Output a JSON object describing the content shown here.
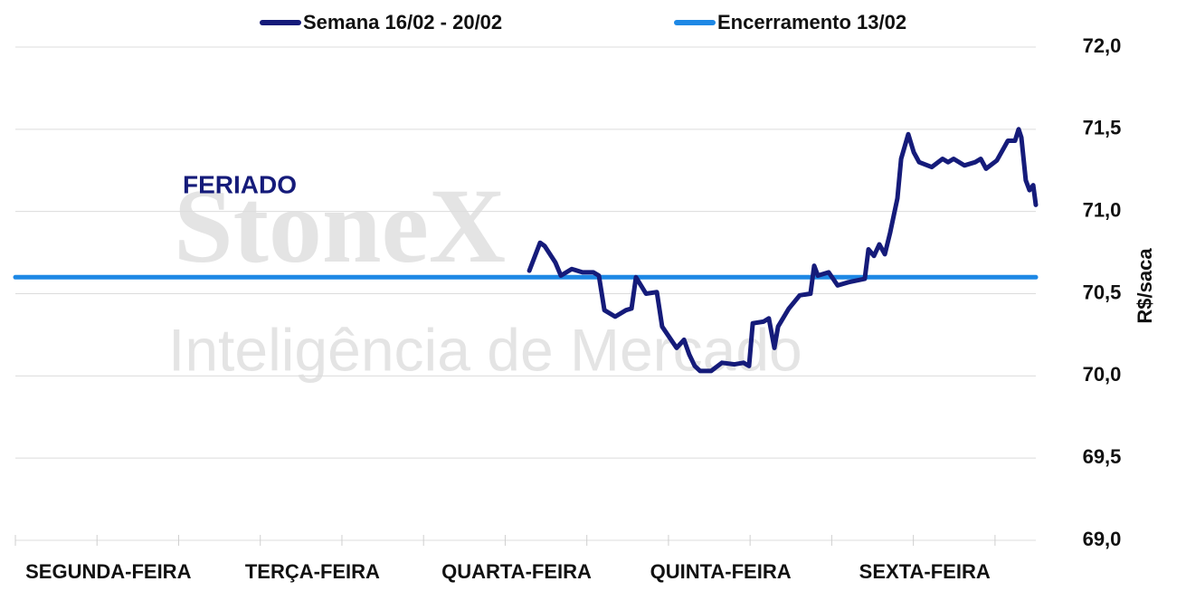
{
  "chart_data": {
    "type": "line",
    "legend_position": "top",
    "y_axis_label": "R$/saca",
    "annotation": "FERIADO",
    "watermark": [
      "StoneX",
      "Inteligência de Mercado"
    ],
    "categories": [
      "SEGUNDA-FEIRA",
      "TERÇA-FEIRA",
      "QUARTA-FEIRA",
      "QUINTA-FEIRA",
      "SEXTA-FEIRA"
    ],
    "xlim": [
      0,
      5
    ],
    "xticks": [
      0,
      0.4,
      0.8,
      1.2,
      1.6,
      2,
      2.4,
      2.8,
      3.2,
      3.6,
      4,
      4.4,
      4.8
    ],
    "ylim": [
      69,
      72
    ],
    "yticks": [
      {
        "value": 69,
        "label": "69,0"
      },
      {
        "value": 69.5,
        "label": "69,5"
      },
      {
        "value": 70,
        "label": "70,0"
      },
      {
        "value": 70.5,
        "label": "70,5"
      },
      {
        "value": 71,
        "label": "71,0"
      },
      {
        "value": 71.5,
        "label": "71,5"
      },
      {
        "value": 72,
        "label": "72,0"
      }
    ],
    "grid": true,
    "series": [
      {
        "name": "Semana 16/02 - 20/02",
        "color": "#151b7a",
        "x": [
          2.518,
          2.571,
          2.593,
          2.646,
          2.673,
          2.726,
          2.779,
          2.832,
          2.859,
          2.886,
          2.939,
          2.992,
          3.019,
          3.041,
          3.09,
          3.143,
          3.169,
          3.24,
          3.276,
          3.302,
          3.329,
          3.355,
          3.409,
          3.462,
          3.524,
          3.568,
          3.595,
          3.613,
          3.666,
          3.692,
          3.719,
          3.737,
          3.79,
          3.843,
          3.896,
          3.914,
          3.932,
          3.985,
          4.029,
          4.082,
          4.162,
          4.18,
          4.207,
          4.233,
          4.26,
          4.286,
          4.322,
          4.34,
          4.375,
          4.402,
          4.428,
          4.49,
          4.543,
          4.57,
          4.597,
          4.65,
          4.703,
          4.73,
          4.756,
          4.809,
          4.863,
          4.898,
          4.916,
          4.929,
          4.951,
          4.969,
          4.987,
          5.0
        ],
        "values": [
          70.64,
          70.81,
          70.79,
          70.69,
          70.61,
          70.65,
          70.63,
          70.63,
          70.61,
          70.4,
          70.36,
          70.4,
          70.41,
          70.6,
          70.5,
          70.51,
          70.3,
          70.17,
          70.22,
          70.13,
          70.06,
          70.03,
          70.03,
          70.08,
          70.07,
          70.08,
          70.06,
          70.32,
          70.33,
          70.35,
          70.17,
          70.3,
          70.41,
          70.49,
          70.5,
          70.67,
          70.61,
          70.63,
          70.55,
          70.57,
          70.59,
          70.77,
          70.73,
          70.8,
          70.74,
          70.87,
          71.08,
          71.32,
          71.47,
          71.36,
          71.3,
          71.27,
          71.32,
          71.3,
          71.32,
          71.28,
          71.3,
          71.32,
          71.26,
          71.31,
          71.43,
          71.43,
          71.5,
          71.45,
          71.19,
          71.13,
          71.16,
          71.04
        ]
      },
      {
        "name": "Encerramento 13/02",
        "color": "#1e88e5",
        "x": [
          0,
          5
        ],
        "values": [
          70.6,
          70.6
        ]
      }
    ]
  }
}
